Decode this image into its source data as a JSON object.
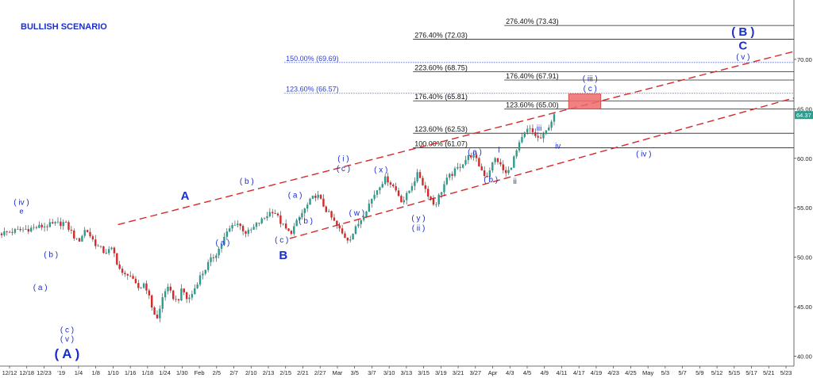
{
  "chart_data": {
    "type": "candlestick",
    "title": "BULLISH SCENARIO",
    "y_axis": {
      "ticks": [
        "70.00",
        "65.00",
        "60.00",
        "55.00",
        "50.00",
        "45.00",
        "40.00"
      ],
      "ylim": [
        39.0,
        76.0
      ],
      "position": "right"
    },
    "x_axis": {
      "ticks": [
        "12/12",
        "12/18",
        "12/23",
        "'19",
        "1/4",
        "1/8",
        "1/10",
        "1/16",
        "1/18",
        "1/24",
        "1/30",
        "Feb",
        "2/5",
        "2/7",
        "2/10",
        "2/13",
        "2/15",
        "2/21",
        "2/27",
        "Mar",
        "3/5",
        "3/7",
        "3/10",
        "3/13",
        "3/15",
        "3/19",
        "3/21",
        "3/27",
        "Apr",
        "4/3",
        "4/5",
        "4/9",
        "4/11",
        "4/17",
        "4/19",
        "4/23",
        "4/25",
        "May",
        "5/3",
        "5/7",
        "5/9",
        "5/12",
        "5/15",
        "5/17",
        "5/21",
        "5/23"
      ]
    },
    "current_price": {
      "label": "64.37",
      "value": 64.37,
      "color": "#2a9d8f"
    },
    "price_path": [
      [
        12.0,
        53.5
      ],
      [
        13.0,
        52.8
      ],
      [
        14.5,
        51.5
      ],
      [
        16.0,
        52.9
      ],
      [
        17.0,
        52.0
      ],
      [
        18.0,
        51.2
      ],
      [
        19.5,
        50.5
      ],
      [
        21.0,
        50.8
      ],
      [
        22.0,
        49.2
      ],
      [
        23.0,
        48.0
      ],
      [
        24.0,
        48.5
      ],
      [
        25.0,
        47.3
      ],
      [
        26.0,
        46.8
      ],
      [
        27.0,
        47.5
      ],
      [
        28.0,
        45.5
      ],
      [
        29.0,
        44.0
      ],
      [
        29.5,
        43.6
      ],
      [
        30.0,
        45.5
      ],
      [
        31.0,
        47.0
      ],
      [
        32.0,
        46.2
      ],
      [
        33.0,
        45.5
      ],
      [
        34.0,
        46.8
      ],
      [
        35.0,
        45.6
      ],
      [
        36.0,
        46.5
      ],
      [
        37.0,
        47.8
      ],
      [
        38.0,
        48.6
      ],
      [
        39.0,
        49.5
      ],
      [
        40.0,
        50.2
      ],
      [
        41.0,
        51.0
      ],
      [
        42.0,
        52.2
      ],
      [
        43.0,
        53.0
      ],
      [
        44.0,
        53.6
      ],
      [
        45.0,
        53.0
      ],
      [
        46.0,
        52.4
      ],
      [
        47.0,
        52.8
      ],
      [
        48.0,
        53.4
      ],
      [
        49.0,
        53.8
      ],
      [
        50.0,
        54.4
      ],
      [
        51.0,
        54.8
      ],
      [
        52.0,
        53.8
      ],
      [
        53.0,
        53.0
      ],
      [
        54.0,
        52.4
      ],
      [
        55.0,
        53.2
      ],
      [
        56.0,
        54.2
      ],
      [
        57.0,
        55.0
      ],
      [
        58.0,
        55.8
      ],
      [
        59.0,
        56.4
      ],
      [
        60.0,
        55.5
      ],
      [
        61.0,
        54.6
      ],
      [
        62.0,
        53.8
      ],
      [
        63.0,
        53.0
      ],
      [
        64.0,
        52.2
      ],
      [
        65.0,
        51.8
      ],
      [
        66.0,
        52.6
      ],
      [
        67.0,
        53.6
      ],
      [
        68.0,
        54.6
      ],
      [
        69.0,
        55.6
      ],
      [
        70.0,
        56.6
      ],
      [
        71.0,
        57.5
      ],
      [
        72.0,
        58.0
      ],
      [
        73.0,
        57.4
      ],
      [
        74.0,
        56.6
      ],
      [
        75.0,
        55.6
      ],
      [
        76.0,
        56.4
      ],
      [
        77.0,
        57.6
      ],
      [
        78.0,
        58.5
      ],
      [
        79.0,
        57.2
      ],
      [
        80.0,
        56.2
      ],
      [
        81.0,
        55.2
      ],
      [
        82.0,
        56.4
      ],
      [
        83.0,
        57.6
      ],
      [
        84.0,
        58.3
      ],
      [
        85.0,
        58.8
      ],
      [
        86.0,
        59.4
      ],
      [
        87.0,
        60.0
      ],
      [
        88.0,
        60.4
      ],
      [
        89.0,
        59.6
      ],
      [
        90.0,
        58.6
      ],
      [
        90.7,
        58.1
      ],
      [
        91.5,
        59.2
      ],
      [
        92.5,
        60.1
      ],
      [
        93.5,
        59.0
      ],
      [
        94.5,
        58.3
      ],
      [
        95.5,
        59.6
      ],
      [
        96.5,
        61.0
      ],
      [
        97.5,
        62.2
      ],
      [
        98.5,
        63.0
      ],
      [
        99.5,
        62.5
      ],
      [
        100.5,
        61.9
      ],
      [
        101.5,
        62.3
      ],
      [
        102.5,
        63.6
      ],
      [
        103.5,
        64.37
      ]
    ],
    "trend_lines": [
      {
        "name": "upper-channel",
        "x1": 22,
        "y1": 53.3,
        "x2": 148,
        "y2": 70.8,
        "color": "#d62828",
        "dash": true
      },
      {
        "name": "lower-channel",
        "x1": 54,
        "y1": 51.9,
        "x2": 148,
        "y2": 66.1,
        "color": "#d62828",
        "dash": true
      }
    ],
    "target_box": {
      "x1": 106,
      "x2": 112,
      "y1": 64.98,
      "y2": 66.5,
      "color": "#ef6a6a"
    },
    "fib_levels": [
      {
        "label": "276.40% (73.43)",
        "value": 73.43,
        "x_start": 94,
        "color": "#222222",
        "dotted": false,
        "label_color": "#111111"
      },
      {
        "label": "276.40% (72.03)",
        "value": 72.03,
        "x_start": 77,
        "color": "#222222",
        "dotted": false,
        "label_color": "#111111"
      },
      {
        "label": "150.00% (69.69)",
        "value": 69.69,
        "x_start": 53,
        "color": "#4a5be0",
        "dotted": true,
        "label_color": "#2b3fd4"
      },
      {
        "label": "223.60% (68.75)",
        "value": 68.75,
        "x_start": 77,
        "color": "#222222",
        "dotted": false,
        "label_color": "#111111"
      },
      {
        "label": "176.40% (67.91)",
        "value": 67.91,
        "x_start": 94,
        "color": "#222222",
        "dotted": false,
        "label_color": "#111111"
      },
      {
        "label": "123.60% (66.57)",
        "value": 66.57,
        "x_start": 53,
        "color": "#4a5be0",
        "dotted": true,
        "label_color": "#2b3fd4"
      },
      {
        "label": "176.40% (65.81)",
        "value": 65.81,
        "x_start": 77,
        "color": "#222222",
        "dotted": false,
        "label_color": "#111111"
      },
      {
        "label": "123.60% (65.00)",
        "value": 65.0,
        "x_start": 94,
        "color": "#222222",
        "dotted": false,
        "label_color": "#111111"
      },
      {
        "label": "123.60% (62.53)",
        "value": 62.53,
        "x_start": 77,
        "color": "#222222",
        "dotted": false,
        "label_color": "#111111"
      },
      {
        "label": "100.00% (61.07)",
        "value": 61.07,
        "x_start": 77,
        "color": "#222222",
        "dotted": false,
        "label_color": "#111111"
      }
    ],
    "wave_labels": [
      {
        "text": "( iv )",
        "x": 4,
        "y": 55.3,
        "size": 10
      },
      {
        "text": "e",
        "x": 4,
        "y": 54.4,
        "size": 9
      },
      {
        "text": "( b )",
        "x": 9.5,
        "y": 50.0,
        "size": 10
      },
      {
        "text": "( a )",
        "x": 7.5,
        "y": 46.7,
        "size": 10
      },
      {
        "text": "( c )",
        "x": 12.5,
        "y": 42.4,
        "size": 10
      },
      {
        "text": "( v )",
        "x": 12.5,
        "y": 41.5,
        "size": 10
      },
      {
        "text": "( A )",
        "x": 12.5,
        "y": 39.8,
        "size": 17
      },
      {
        "text": "A",
        "x": 34.5,
        "y": 55.8,
        "size": 15
      },
      {
        "text": "( a )",
        "x": 41.5,
        "y": 51.2,
        "size": 10
      },
      {
        "text": "( b )",
        "x": 46,
        "y": 57.4,
        "size": 10
      },
      {
        "text": "( c )",
        "x": 52.5,
        "y": 51.5,
        "size": 10
      },
      {
        "text": "B",
        "x": 52.8,
        "y": 49.8,
        "size": 15
      },
      {
        "text": "( a )",
        "x": 55,
        "y": 56.0,
        "size": 10
      },
      {
        "text": "( b )",
        "x": 57,
        "y": 53.4,
        "size": 10
      },
      {
        "text": "( i )",
        "x": 64,
        "y": 59.7,
        "size": 10
      },
      {
        "text": "( c )",
        "x": 64,
        "y": 58.7,
        "size": 10
      },
      {
        "text": "( w )",
        "x": 66.5,
        "y": 54.2,
        "size": 10
      },
      {
        "text": "( x )",
        "x": 71,
        "y": 58.6,
        "size": 10
      },
      {
        "text": "( y )",
        "x": 78,
        "y": 53.7,
        "size": 10
      },
      {
        "text": "( ii )",
        "x": 78,
        "y": 52.7,
        "size": 10
      },
      {
        "text": "( a )",
        "x": 88.5,
        "y": 60.4,
        "size": 10
      },
      {
        "text": "i",
        "x": 93,
        "y": 60.6,
        "size": 10
      },
      {
        "text": "( b )",
        "x": 91.5,
        "y": 57.6,
        "size": 10
      },
      {
        "text": "ii",
        "x": 96,
        "y": 57.4,
        "size": 10
      },
      {
        "text": "iii",
        "x": 100.5,
        "y": 62.8,
        "size": 10
      },
      {
        "text": "iv",
        "x": 104,
        "y": 61.0,
        "size": 10
      },
      {
        "text": "( iii )",
        "x": 110,
        "y": 67.8,
        "size": 10
      },
      {
        "text": "( c )",
        "x": 110,
        "y": 66.8,
        "size": 10
      },
      {
        "text": "( iv )",
        "x": 120,
        "y": 60.2,
        "size": 10
      },
      {
        "text": "( B )",
        "x": 138.5,
        "y": 72.4,
        "size": 15
      },
      {
        "text": "C",
        "x": 138.5,
        "y": 71.0,
        "size": 15
      },
      {
        "text": "( v )",
        "x": 138.5,
        "y": 70.0,
        "size": 10
      }
    ]
  }
}
